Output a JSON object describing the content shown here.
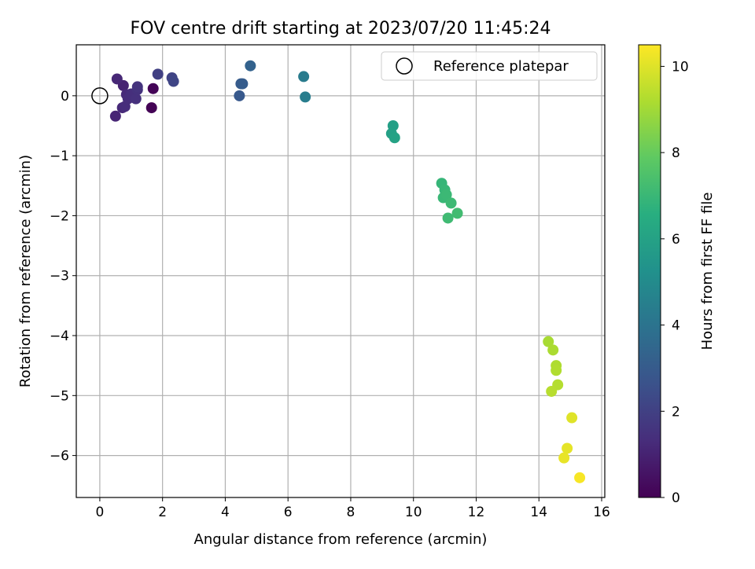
{
  "chart_data": {
    "type": "scatter",
    "title": "FOV centre drift starting at 2023/07/20 11:45:24",
    "xlabel": "Angular distance from reference (arcmin)",
    "ylabel": "Rotation from reference (arcmin)",
    "xlim": [
      -0.75,
      16.1
    ],
    "ylim": [
      -6.7,
      0.85
    ],
    "xticks": [
      0,
      2,
      4,
      6,
      8,
      10,
      12,
      14,
      16
    ],
    "yticks": [
      0,
      -1,
      -2,
      -3,
      -4,
      -5,
      -6
    ],
    "xtick_labels": [
      "0",
      "2",
      "4",
      "6",
      "8",
      "10",
      "12",
      "14",
      "16"
    ],
    "ytick_labels": [
      "0",
      "−1",
      "−2",
      "−3",
      "−4",
      "−5",
      "−6"
    ],
    "grid": true,
    "colormap": "viridis",
    "colorbar": {
      "label": "Hours from first FF file",
      "min": 0,
      "max": 10.5,
      "ticks": [
        0,
        2,
        4,
        6,
        8,
        10
      ],
      "tick_labels": [
        "0",
        "2",
        "4",
        "6",
        "8",
        "10"
      ]
    },
    "legend": {
      "position": "top-right",
      "entries": [
        "Reference platepar"
      ]
    },
    "reference": {
      "x": 0,
      "y": 0,
      "label": "Reference platepar"
    },
    "points": [
      {
        "x": 1.65,
        "y": -0.2,
        "h": 0.05
      },
      {
        "x": 1.7,
        "y": 0.12,
        "h": 0.1
      },
      {
        "x": 0.75,
        "y": 0.17,
        "h": 1.0
      },
      {
        "x": 0.5,
        "y": -0.34,
        "h": 1.1
      },
      {
        "x": 0.55,
        "y": 0.28,
        "h": 1.15
      },
      {
        "x": 0.72,
        "y": -0.2,
        "h": 1.2
      },
      {
        "x": 0.85,
        "y": 0.02,
        "h": 1.25
      },
      {
        "x": 0.8,
        "y": -0.18,
        "h": 1.3
      },
      {
        "x": 0.9,
        "y": -0.05,
        "h": 1.35
      },
      {
        "x": 1.0,
        "y": 0.03,
        "h": 1.4
      },
      {
        "x": 1.15,
        "y": -0.05,
        "h": 1.45
      },
      {
        "x": 1.2,
        "y": 0.1,
        "h": 1.5
      },
      {
        "x": 1.2,
        "y": 0.15,
        "h": 1.55
      },
      {
        "x": 1.85,
        "y": 0.36,
        "h": 2.0
      },
      {
        "x": 2.3,
        "y": 0.3,
        "h": 2.1
      },
      {
        "x": 2.35,
        "y": 0.24,
        "h": 2.15
      },
      {
        "x": 4.45,
        "y": 0.0,
        "h": 2.9
      },
      {
        "x": 4.5,
        "y": 0.2,
        "h": 3.0
      },
      {
        "x": 4.55,
        "y": 0.2,
        "h": 3.05
      },
      {
        "x": 4.8,
        "y": 0.5,
        "h": 3.3
      },
      {
        "x": 6.5,
        "y": 0.32,
        "h": 4.3
      },
      {
        "x": 6.55,
        "y": -0.02,
        "h": 4.4
      },
      {
        "x": 9.35,
        "y": -0.5,
        "h": 5.9
      },
      {
        "x": 9.3,
        "y": -0.63,
        "h": 5.95
      },
      {
        "x": 9.4,
        "y": -0.7,
        "h": 6.0
      },
      {
        "x": 10.9,
        "y": -1.46,
        "h": 6.9
      },
      {
        "x": 11.0,
        "y": -1.57,
        "h": 6.95
      },
      {
        "x": 10.95,
        "y": -1.7,
        "h": 7.0
      },
      {
        "x": 11.05,
        "y": -1.65,
        "h": 7.05
      },
      {
        "x": 11.2,
        "y": -1.79,
        "h": 7.1
      },
      {
        "x": 11.1,
        "y": -2.04,
        "h": 7.15
      },
      {
        "x": 11.4,
        "y": -1.96,
        "h": 7.2
      },
      {
        "x": 14.3,
        "y": -4.1,
        "h": 9.1
      },
      {
        "x": 14.45,
        "y": -4.24,
        "h": 9.15
      },
      {
        "x": 14.55,
        "y": -4.5,
        "h": 9.2
      },
      {
        "x": 14.55,
        "y": -4.58,
        "h": 9.25
      },
      {
        "x": 14.6,
        "y": -4.82,
        "h": 9.3
      },
      {
        "x": 14.4,
        "y": -4.93,
        "h": 9.35
      },
      {
        "x": 15.05,
        "y": -5.37,
        "h": 10.0
      },
      {
        "x": 14.9,
        "y": -5.88,
        "h": 10.1
      },
      {
        "x": 14.8,
        "y": -6.04,
        "h": 10.15
      },
      {
        "x": 15.3,
        "y": -6.37,
        "h": 10.4
      }
    ]
  }
}
